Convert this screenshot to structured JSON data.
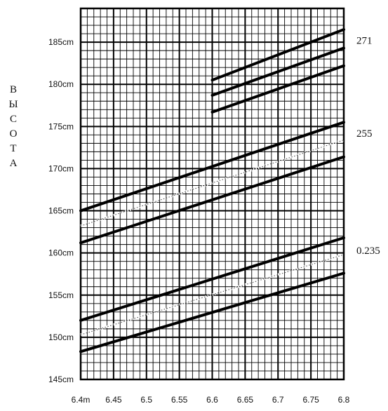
{
  "chart_data": {
    "type": "line",
    "title": "",
    "xlabel": "",
    "ylabel": "ВЫСОТА",
    "ylabel_letters": [
      "В",
      "Ы",
      "С",
      "О",
      "Т",
      "А"
    ],
    "xlim": [
      6.4,
      6.8
    ],
    "ylim": [
      145,
      189
    ],
    "grid": true,
    "x_ticks": [
      6.4,
      6.45,
      6.5,
      6.55,
      6.6,
      6.65,
      6.7,
      6.75,
      6.8
    ],
    "x_tick_labels": [
      "6.4m",
      "6.45",
      "6.5",
      "6.55",
      "6.6",
      "6.65",
      "6.7",
      "6.75",
      "6.8"
    ],
    "y_ticks": [
      145,
      150,
      155,
      160,
      165,
      170,
      175,
      180,
      185
    ],
    "y_tick_labels": [
      "145cm",
      "150cm",
      "155cm",
      "160cm",
      "165cm",
      "170cm",
      "175cm",
      "180cm",
      "185cm"
    ],
    "series": [
      {
        "x": [
          6.6,
          6.8
        ],
        "y": [
          180.5,
          186.5
        ],
        "style": "thick"
      },
      {
        "x": [
          6.6,
          6.8
        ],
        "y": [
          178.7,
          184.3
        ],
        "style": "thick"
      },
      {
        "x": [
          6.6,
          6.8
        ],
        "y": [
          176.7,
          182.2
        ],
        "style": "thick"
      },
      {
        "x": [
          6.4,
          6.8
        ],
        "y": [
          165.0,
          175.5
        ],
        "style": "thick"
      },
      {
        "x": [
          6.4,
          6.8
        ],
        "y": [
          163.2,
          173.4
        ],
        "style": "dotted"
      },
      {
        "x": [
          6.4,
          6.8
        ],
        "y": [
          161.2,
          171.4
        ],
        "style": "thick"
      },
      {
        "x": [
          6.4,
          6.8
        ],
        "y": [
          152.0,
          161.8
        ],
        "style": "thick"
      },
      {
        "x": [
          6.4,
          6.8
        ],
        "y": [
          150.3,
          159.8
        ],
        "style": "dotted"
      },
      {
        "x": [
          6.4,
          6.8
        ],
        "y": [
          148.3,
          157.6
        ],
        "style": "thick"
      }
    ],
    "side_labels": [
      {
        "text": "271",
        "y": 185.2
      },
      {
        "text": "255",
        "y": 174.2
      },
      {
        "text": "0.235",
        "y": 160.3
      }
    ]
  }
}
